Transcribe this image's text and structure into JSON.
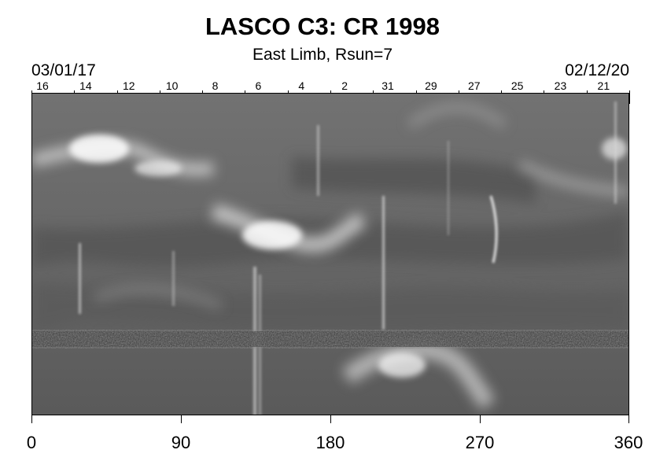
{
  "title": "LASCO C3: CR 1998",
  "subtitle": "East Limb, Rsun=7",
  "date_start": "03/01/17",
  "date_end": "02/12/20",
  "top_axis": {
    "labels": [
      "16",
      "14",
      "12",
      "10",
      "8",
      "6",
      "4",
      "2",
      "31",
      "29",
      "27",
      "25",
      "23",
      "21"
    ]
  },
  "bottom_axis": {
    "range": [
      0,
      360
    ],
    "labels": [
      "0",
      "90",
      "180",
      "270",
      "360"
    ]
  },
  "image": {
    "description_colormap": "grayscale",
    "background": "#6a6a6a",
    "noise_band_color": "#3a3a3a"
  }
}
